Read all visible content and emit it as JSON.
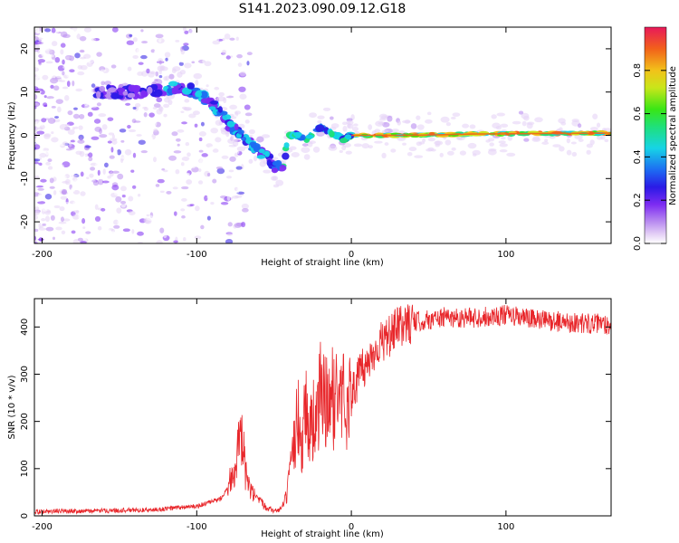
{
  "title": "S141.2023.090.09.12.G18",
  "colors": {
    "snr_line": "#e8262a",
    "colormap": [
      "#ffffff",
      "#e6d3f6",
      "#b98cf0",
      "#7d2bf2",
      "#2b1ae6",
      "#1d6cf2",
      "#16d4e6",
      "#1fe07a",
      "#39e615",
      "#c9e61a",
      "#f2c21a",
      "#f2611a",
      "#e8195a"
    ]
  },
  "chart_data": [
    {
      "type": "heatmap",
      "xlabel": "Height of straight line (km)",
      "ylabel": "Frequency (Hz)",
      "xlim": [
        -205,
        168
      ],
      "ylim": [
        -25,
        25
      ],
      "xticks": [
        -200,
        -100,
        0,
        100
      ],
      "yticks": [
        -20,
        -10,
        0,
        10,
        20
      ],
      "colorbar": {
        "label": "Normalized spectral amplitude",
        "range": [
          0,
          1
        ],
        "ticks": [
          0.0,
          0.2,
          0.4,
          0.6,
          0.8
        ]
      },
      "ridge": {
        "x": [
          -150,
          -130,
          -120,
          -110,
          -100,
          -92,
          -85,
          -78,
          -70,
          -62,
          -55,
          -50,
          -45,
          -40,
          -35,
          -30,
          -25,
          -20,
          -15,
          -10,
          -5,
          0,
          10,
          40,
          80,
          120,
          168
        ],
        "y": [
          10,
          10,
          11,
          11,
          10,
          8,
          5,
          2,
          0,
          -3,
          -5,
          -7,
          -8,
          0,
          0,
          -1,
          0,
          2,
          1,
          0,
          -1,
          0,
          0,
          0,
          0.3,
          0.4,
          0.5
        ]
      }
    },
    {
      "type": "line",
      "xlabel": "Height of straight line (km)",
      "ylabel": "SNR (10 * v/v)",
      "xlim": [
        -205,
        168
      ],
      "ylim": [
        0,
        460
      ],
      "xticks": [
        -200,
        -100,
        0,
        100
      ],
      "yticks": [
        0,
        100,
        200,
        300,
        400
      ],
      "series": [
        {
          "x": [
            -205,
            -190,
            -170,
            -150,
            -130,
            -120,
            -110,
            -100,
            -95,
            -90,
            -85,
            -80,
            -75,
            -72,
            -70,
            -68,
            -65,
            -60,
            -55,
            -50,
            -45,
            -42,
            -38,
            -35,
            -32,
            -30,
            -27,
            -25,
            -22,
            -20,
            -15,
            -10,
            -5,
            0,
            5,
            10,
            15,
            20,
            25,
            30,
            40,
            50,
            60,
            80,
            100,
            120,
            140,
            168
          ],
          "y": [
            8,
            10,
            10,
            12,
            12,
            15,
            18,
            20,
            25,
            30,
            35,
            60,
            110,
            160,
            140,
            80,
            50,
            30,
            20,
            10,
            15,
            40,
            120,
            220,
            150,
            240,
            180,
            200,
            210,
            260,
            230,
            260,
            250,
            250,
            300,
            320,
            350,
            370,
            380,
            400,
            410,
            415,
            420,
            420,
            425,
            415,
            410,
            405
          ]
        }
      ]
    }
  ]
}
